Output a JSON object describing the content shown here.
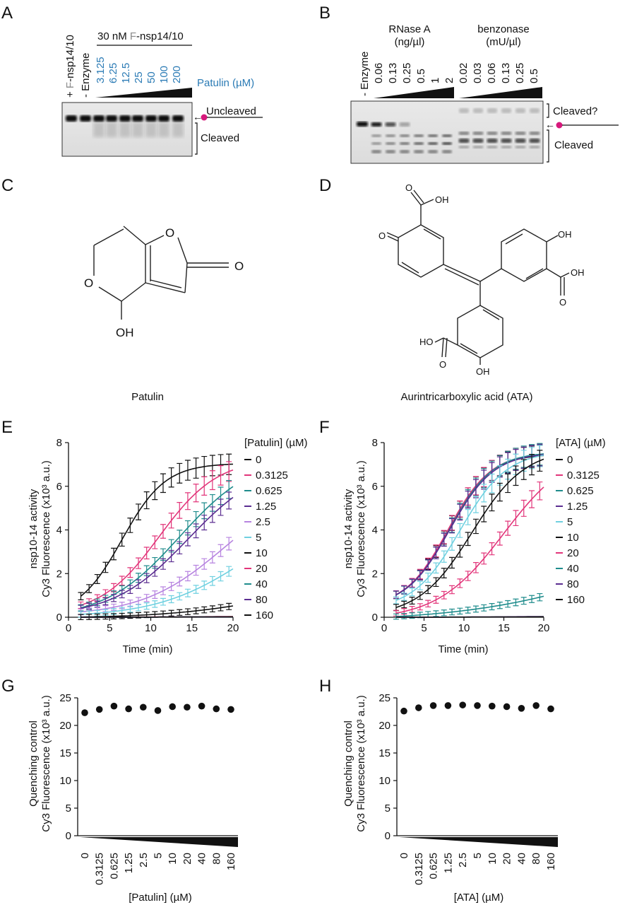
{
  "panels": {
    "A": {
      "label": "A",
      "lane_plus": "+",
      "lane_minus": "-",
      "enzyme_prefix": "F",
      "enzyme_suffix": "-nsp14/10",
      "enzyme_label": "Enzyme",
      "header_prefix": "30 nM ",
      "header_f": "F",
      "header_suffix": "-nsp14/10",
      "concentrations": [
        "3.125",
        "6.25",
        "12.5",
        "25",
        "50",
        "100",
        "200"
      ],
      "patulin_label": "Patulin (µM)",
      "uncleaved_label": "Uncleaved",
      "cleaved_label": "Cleaved"
    },
    "B": {
      "label": "B",
      "enzyme_label": "- Enzyme",
      "rnase_title": "RNase A",
      "rnase_units": "(ng/µl)",
      "rnase_conc": [
        "0.06",
        "0.13",
        "0.25",
        "0.5",
        "1",
        "2"
      ],
      "benzonase_title": "benzonase",
      "benzonase_units": "(mU/µl)",
      "benzonase_conc": [
        "0.02",
        "0.03",
        "0.06",
        "0.13",
        "0.25",
        "0.5"
      ],
      "cleaved_q_label": "Cleaved?",
      "cleaved_label": "Cleaved"
    },
    "C": {
      "label": "C",
      "name": "Patulin",
      "atom_o1": "O",
      "atom_o2": "O",
      "atom_o3": "O",
      "atom_oh": "OH"
    },
    "D": {
      "label": "D",
      "name": "Aurintricarboxylic acid (ATA)",
      "atom_o_left": "O",
      "cooh1_oh": "OH",
      "cooh1_o": "O",
      "ring2_oh": "OH",
      "cooh2_oh": "OH",
      "cooh2_o": "O",
      "ring3_oh": "OH",
      "cooh3_ho": "HO",
      "cooh3_o": "O"
    },
    "E": {
      "label": "E",
      "legend_title": "[Patulin] (µM)"
    },
    "F": {
      "label": "F",
      "legend_title": "[ATA] (µM)"
    },
    "G": {
      "label": "G",
      "xlabel": "[Patulin] (µM)"
    },
    "H": {
      "label": "H",
      "xlabel": "[ATA] (µM)"
    }
  },
  "colors": {
    "c0": "#111111",
    "c0_3125": "#e2357a",
    "c0_625": "#1f8c8c",
    "c1_25": "#5b2d91",
    "c2_5": "#b784e0",
    "c5": "#6fd0e0",
    "c10": "#111111",
    "c20": "#e2357a",
    "c40": "#1f8c8c",
    "c80": "#5b2d91",
    "c160": "#111111",
    "dot": "#111111",
    "accent_dot": "#d6197c"
  },
  "chart_data": [
    {
      "panel": "E",
      "type": "line",
      "xlabel": "Time (min)",
      "ylabel_line1": "nsp10-14 activity",
      "ylabel_line2": "Cy3 Fluorescence (x10³ a.u.)",
      "xlim": [
        0,
        20
      ],
      "ylim": [
        0,
        8
      ],
      "xticks": [
        "0",
        "5",
        "10",
        "15",
        "20"
      ],
      "yticks": [
        "0",
        "2",
        "4",
        "6",
        "8"
      ],
      "legend_title": "[Patulin] (µM)",
      "series": [
        {
          "name": "0",
          "color": "#111111",
          "y0": 0.6,
          "ymax": 7.6,
          "half": 6.5,
          "k": 0.38
        },
        {
          "name": "0.3125",
          "color": "#e2357a",
          "y0": 0.4,
          "ymax": 7.6,
          "half": 11.0,
          "k": 0.28
        },
        {
          "name": "0.625",
          "color": "#1f8c8c",
          "y0": 0.3,
          "ymax": 7.8,
          "half": 13.5,
          "k": 0.22
        },
        {
          "name": "1.25",
          "color": "#5b2d91",
          "y0": 0.3,
          "ymax": 7.4,
          "half": 14.5,
          "k": 0.22
        },
        {
          "name": "2.5",
          "color": "#b784e0",
          "y0": 0.2,
          "ymax": 6.5,
          "half": 19.0,
          "k": 0.2
        },
        {
          "name": "5",
          "color": "#6fd0e0",
          "y0": 0.1,
          "ymax": 5.5,
          "half": 22.0,
          "k": 0.18
        },
        {
          "name": "10",
          "color": "#111111",
          "y0": 0.0,
          "ymax": 1.6,
          "half": 24.0,
          "k": 0.16
        },
        {
          "name": "20",
          "color": "#e2357a",
          "y0": 0.0,
          "ymax": 0.15,
          "half": 30.0,
          "k": 0.1
        },
        {
          "name": "40",
          "color": "#1f8c8c",
          "y0": 0.0,
          "ymax": 0.1,
          "half": 30.0,
          "k": 0.1
        },
        {
          "name": "80",
          "color": "#5b2d91",
          "y0": 0.0,
          "ymax": 0.1,
          "half": 30.0,
          "k": 0.1
        },
        {
          "name": "160",
          "color": "#111111",
          "y0": 0.0,
          "ymax": 0.1,
          "half": 30.0,
          "k": 0.1
        }
      ]
    },
    {
      "panel": "F",
      "type": "line",
      "xlabel": "Time (min)",
      "ylabel_line1": "nsp10-14 activity",
      "ylabel_line2": "Cy3 Fluorescence (x10³ a.u.)",
      "xlim": [
        0,
        20
      ],
      "ylim": [
        0,
        8
      ],
      "xticks": [
        "0",
        "5",
        "10",
        "15",
        "20"
      ],
      "yticks": [
        "0",
        "2",
        "4",
        "6",
        "8"
      ],
      "legend_title": "[ATA] (µM)",
      "series": [
        {
          "name": "0",
          "color": "#111111",
          "y0": 0.8,
          "ymax": 7.8,
          "half": 8.0,
          "k": 0.38
        },
        {
          "name": "0.3125",
          "color": "#e2357a",
          "y0": 0.8,
          "ymax": 7.9,
          "half": 8.0,
          "k": 0.37
        },
        {
          "name": "0.625",
          "color": "#1f8c8c",
          "y0": 0.8,
          "ymax": 7.9,
          "half": 8.2,
          "k": 0.37
        },
        {
          "name": "1.25",
          "color": "#5b2d91",
          "y0": 0.8,
          "ymax": 7.9,
          "half": 8.2,
          "k": 0.36
        },
        {
          "name": "5",
          "color": "#6fd0e0",
          "y0": 0.6,
          "ymax": 7.9,
          "half": 9.5,
          "k": 0.34
        },
        {
          "name": "10",
          "color": "#111111",
          "y0": 0.3,
          "ymax": 8.0,
          "half": 11.0,
          "k": 0.3
        },
        {
          "name": "20",
          "color": "#e2357a",
          "y0": 0.1,
          "ymax": 8.0,
          "half": 15.0,
          "k": 0.24
        },
        {
          "name": "40",
          "color": "#1f8c8c",
          "y0": 0.0,
          "ymax": 5.0,
          "half": 32.0,
          "k": 0.1
        },
        {
          "name": "80",
          "color": "#5b2d91",
          "y0": 0.0,
          "ymax": 0.15,
          "half": 30.0,
          "k": 0.1
        },
        {
          "name": "160",
          "color": "#111111",
          "y0": 0.0,
          "ymax": 0.1,
          "half": 30.0,
          "k": 0.1
        }
      ],
      "legend_entries": [
        "0",
        "0.3125",
        "0.625",
        "1.25",
        "5",
        "10",
        "20",
        "40",
        "80",
        "160"
      ]
    },
    {
      "panel": "G",
      "type": "scatter",
      "xlabel": "[Patulin] (µM)",
      "ylabel_line1": "Quenching control",
      "ylabel_line2": "Cy3 Fluorescence (x10³ a.u.)",
      "ylim": [
        0,
        25
      ],
      "yticks": [
        "0",
        "5",
        "10",
        "15",
        "20",
        "25"
      ],
      "categories": [
        "0",
        "0.3125",
        "0.625",
        "1.25",
        "2.5",
        "5",
        "10",
        "20",
        "40",
        "80",
        "160"
      ],
      "values": [
        22.3,
        22.9,
        23.5,
        23.0,
        23.3,
        22.7,
        23.4,
        23.3,
        23.5,
        23.0,
        22.9
      ]
    },
    {
      "panel": "H",
      "type": "scatter",
      "xlabel": "[ATA] (µM)",
      "ylabel_line1": "Quenching control",
      "ylabel_line2": "Cy3 Fluorescence (x10³ a.u.)",
      "ylim": [
        0,
        25
      ],
      "yticks": [
        "0",
        "5",
        "10",
        "15",
        "20",
        "25"
      ],
      "categories": [
        "0",
        "0.3125",
        "0.625",
        "1.25",
        "2.5",
        "5",
        "10",
        "20",
        "40",
        "80",
        "160"
      ],
      "values": [
        22.6,
        23.2,
        23.6,
        23.6,
        23.7,
        23.6,
        23.5,
        23.4,
        23.1,
        23.6,
        23.0
      ]
    }
  ]
}
